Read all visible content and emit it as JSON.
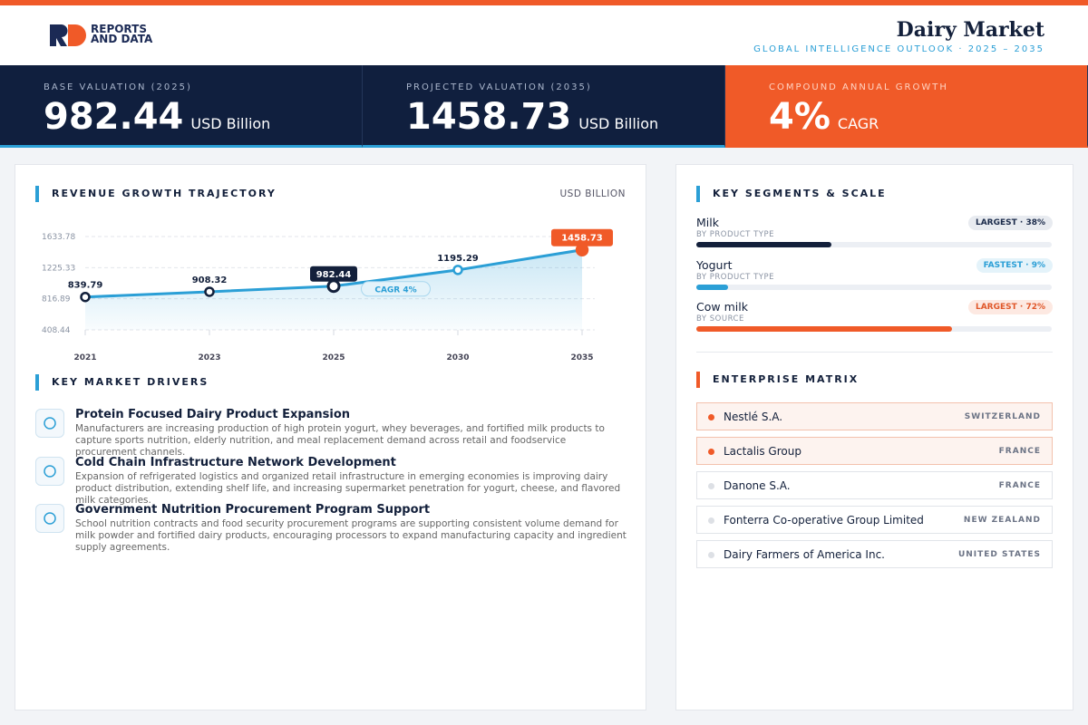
{
  "brand": {
    "line1": "REPORTS",
    "line2": "AND DATA"
  },
  "header": {
    "title": "Dairy Market",
    "subtitle": "GLOBAL INTELLIGENCE OUTLOOK · 2025 – 2035"
  },
  "kpis": [
    {
      "label": "BASE VALUATION (2025)",
      "value": "982.44",
      "unit": "USD Billion"
    },
    {
      "label": "PROJECTED VALUATION (2035)",
      "value": "1458.73",
      "unit": "USD Billion"
    },
    {
      "label": "COMPOUND ANNUAL GROWTH",
      "value": "4%",
      "unit": "CAGR"
    }
  ],
  "chart_data": {
    "type": "line",
    "title": "REVENUE GROWTH TRAJECTORY",
    "unit_label": "USD BILLION",
    "annotation": "CAGR 4%",
    "categories": [
      "2021",
      "2023",
      "2025",
      "2030",
      "2035"
    ],
    "values": [
      839.79,
      908.32,
      982.44,
      1195.29,
      1458.73
    ],
    "color": "#2b9fd6",
    "ylim": [
      408.44,
      1633.78
    ],
    "yticks": [
      408.44,
      816.89,
      1225.33,
      1633.78
    ],
    "grid": true
  },
  "drivers": {
    "title": "KEY MARKET DRIVERS",
    "items": [
      {
        "title": "Protein Focused Dairy Product Expansion",
        "text": "Manufacturers are increasing production of high protein yogurt, whey beverages, and fortified milk products to capture sports nutrition, elderly nutrition, and meal replacement demand across retail and foodservice procurement channels."
      },
      {
        "title": "Cold Chain Infrastructure Network Development",
        "text": "Expansion of refrigerated logistics and organized retail infrastructure in emerging economies is improving dairy product distribution, extending shelf life, and increasing supermarket penetration for yogurt, cheese, and flavored milk categories."
      },
      {
        "title": "Government Nutrition Procurement Program Support",
        "text": "School nutrition contracts and food security procurement programs are supporting consistent volume demand for milk powder and fortified dairy products, encouraging processors to expand manufacturing capacity and ingredient supply agreements."
      }
    ]
  },
  "segments": {
    "title": "KEY SEGMENTS & SCALE",
    "items": [
      {
        "name": "Milk",
        "group": "BY PRODUCT TYPE",
        "badge": "LARGEST · 38%",
        "share": 38,
        "color": "#13203b"
      },
      {
        "name": "Yogurt",
        "group": "BY PRODUCT TYPE",
        "badge": "FASTEST · 9%",
        "share": 9,
        "color": "#2b9fd6"
      },
      {
        "name": "Cow milk",
        "group": "BY SOURCE",
        "badge": "LARGEST · 72%",
        "share": 72,
        "color": "#f05a28"
      }
    ]
  },
  "enterprises": {
    "title": "ENTERPRISE MATRIX",
    "items": [
      {
        "name": "Nestlé S.A.",
        "country": "SWITZERLAND",
        "highlight": true
      },
      {
        "name": "Lactalis Group",
        "country": "FRANCE",
        "highlight": true
      },
      {
        "name": "Danone S.A.",
        "country": "FRANCE",
        "highlight": false
      },
      {
        "name": "Fonterra Co-operative Group Limited",
        "country": "NEW ZEALAND",
        "highlight": false
      },
      {
        "name": "Dairy Farmers of America Inc.",
        "country": "UNITED STATES",
        "highlight": false
      }
    ]
  }
}
